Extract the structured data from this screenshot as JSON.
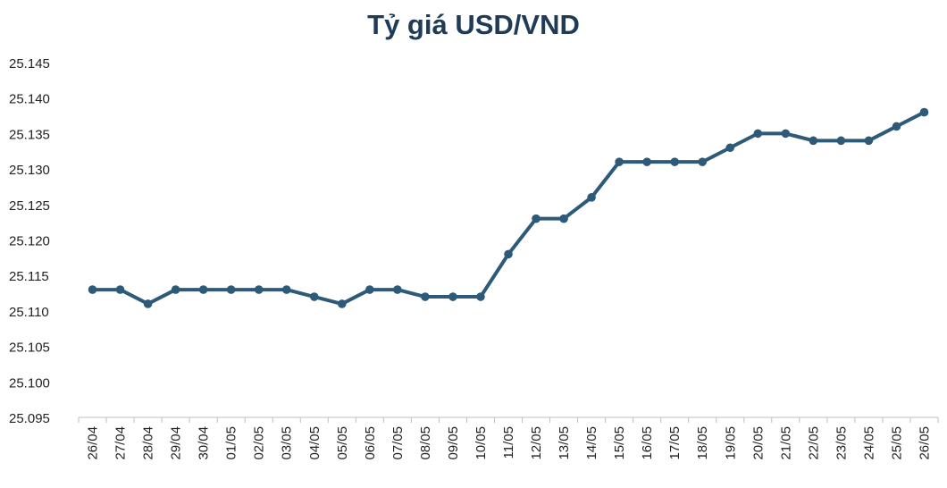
{
  "chart_data": {
    "type": "line",
    "title": "Tỷ giá USD/VND",
    "xlabel": "",
    "ylabel": "",
    "ylim": [
      25.095,
      25.145
    ],
    "y_ticks": [
      "25.095",
      "25.100",
      "25.105",
      "25.110",
      "25.115",
      "25.120",
      "25.125",
      "25.130",
      "25.135",
      "25.140",
      "25.145"
    ],
    "grid": false,
    "line_color": "#2e5a7a",
    "categories": [
      "26/04",
      "27/04",
      "28/04",
      "29/04",
      "30/04",
      "01/05",
      "02/05",
      "03/05",
      "04/05",
      "05/05",
      "06/05",
      "07/05",
      "08/05",
      "09/05",
      "10/05",
      "11/05",
      "12/05",
      "13/05",
      "14/05",
      "15/05",
      "16/05",
      "17/05",
      "18/05",
      "19/05",
      "20/05",
      "21/05",
      "22/05",
      "23/05",
      "24/05",
      "25/05",
      "26/05"
    ],
    "values": [
      25.113,
      25.113,
      25.111,
      25.113,
      25.113,
      25.113,
      25.113,
      25.113,
      25.112,
      25.111,
      25.113,
      25.113,
      25.112,
      25.112,
      25.112,
      25.118,
      25.123,
      25.123,
      25.126,
      25.131,
      25.131,
      25.131,
      25.131,
      25.133,
      25.135,
      25.135,
      25.134,
      25.134,
      25.134,
      25.136,
      25.138
    ]
  }
}
